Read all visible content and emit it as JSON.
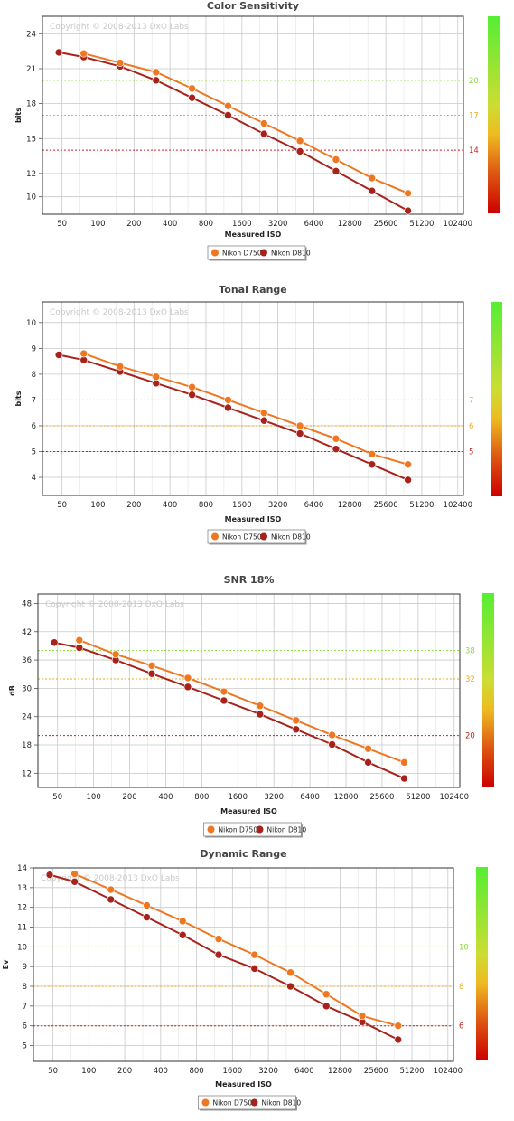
{
  "watermark": "Copyright © 2008-2013 DxO Labs",
  "colors": {
    "d750": "#ee7722",
    "d810": "#a8221c",
    "grid": "#c9c9c9",
    "ref_good": "#88dd33",
    "ref_mid": "#eeaa22",
    "ref_bad": "#cc2222"
  },
  "chart_data": [
    {
      "type": "line",
      "title": "Color Sensitivity",
      "xlabel": "Measured ISO",
      "ylabel": "bits",
      "x_ticks": [
        "50",
        "100",
        "200",
        "400",
        "800",
        "1600",
        "3200",
        "6400",
        "12800",
        "25600",
        "51200",
        "102400"
      ],
      "x_log2_min": 5.1,
      "x_log2_max": 16.8,
      "y_ticks": [
        10,
        12,
        15,
        18,
        21,
        24
      ],
      "ylim": [
        8.5,
        25.5
      ],
      "reference_lines": [
        {
          "value": 20,
          "label": "20",
          "level": "good"
        },
        {
          "value": 17,
          "label": "17",
          "level": "mid"
        },
        {
          "value": 14,
          "label": "14",
          "level": "bad"
        }
      ],
      "grid": true,
      "legend": "bottom-center",
      "series": [
        {
          "name": "Nikon D750",
          "color_key": "d750",
          "x": [
            76,
            153,
            306,
            612,
            1225,
            2450,
            4900,
            9800,
            19600,
            39200
          ],
          "values": [
            22.3,
            21.5,
            20.7,
            19.3,
            17.8,
            16.3,
            14.8,
            13.2,
            11.6,
            10.3
          ]
        },
        {
          "name": "Nikon D810",
          "color_key": "d810",
          "x": [
            47,
            76,
            153,
            306,
            612,
            1225,
            2450,
            4900,
            9800,
            19600,
            39200
          ],
          "values": [
            22.4,
            22.0,
            21.2,
            20.0,
            18.5,
            17.0,
            15.4,
            13.9,
            12.2,
            10.5,
            8.8
          ]
        }
      ]
    },
    {
      "type": "line",
      "title": "Tonal Range",
      "xlabel": "Measured ISO",
      "ylabel": "bits",
      "x_ticks": [
        "50",
        "100",
        "200",
        "400",
        "800",
        "1600",
        "3200",
        "6400",
        "12800",
        "25600",
        "51200",
        "102400"
      ],
      "x_log2_min": 5.1,
      "x_log2_max": 16.8,
      "y_ticks": [
        4,
        5,
        6,
        7,
        8,
        9,
        10
      ],
      "ylim": [
        3.3,
        10.8
      ],
      "reference_lines": [
        {
          "value": 7,
          "label": "7",
          "level": "good"
        },
        {
          "value": 6,
          "label": "6",
          "level": "mid"
        },
        {
          "value": 5,
          "label": "5",
          "level": "bad"
        }
      ],
      "grid": true,
      "legend": "bottom-center",
      "series": [
        {
          "name": "Nikon D750",
          "color_key": "d750",
          "x": [
            76,
            153,
            306,
            612,
            1225,
            2450,
            4900,
            9800,
            19600,
            39200
          ],
          "values": [
            8.8,
            8.3,
            7.9,
            7.5,
            7.0,
            6.5,
            6.0,
            5.5,
            4.9,
            4.5
          ]
        },
        {
          "name": "Nikon D810",
          "color_key": "d810",
          "x": [
            47,
            76,
            153,
            306,
            612,
            1225,
            2450,
            4900,
            9800,
            19600,
            39200
          ],
          "values": [
            8.75,
            8.55,
            8.1,
            7.65,
            7.2,
            6.7,
            6.2,
            5.7,
            5.1,
            4.5,
            3.9
          ]
        }
      ]
    },
    {
      "type": "line",
      "title": "SNR 18%",
      "xlabel": "Measured ISO",
      "ylabel": "dB",
      "x_ticks": [
        "50",
        "100",
        "200",
        "400",
        "800",
        "1600",
        "3200",
        "6400",
        "12800",
        "25600",
        "51200",
        "102400"
      ],
      "x_log2_min": 5.1,
      "x_log2_max": 16.8,
      "y_ticks": [
        12,
        18,
        24,
        30,
        36,
        42,
        48
      ],
      "ylim": [
        9,
        50
      ],
      "reference_lines": [
        {
          "value": 38,
          "label": "38",
          "level": "good"
        },
        {
          "value": 32,
          "label": "32",
          "level": "mid"
        },
        {
          "value": 20,
          "label": "20",
          "level": "bad"
        }
      ],
      "grid": true,
      "legend": "bottom-center",
      "series": [
        {
          "name": "Nikon D750",
          "color_key": "d750",
          "x": [
            76,
            153,
            306,
            612,
            1225,
            2450,
            4900,
            9800,
            19600,
            39200
          ],
          "values": [
            40.2,
            37.2,
            34.8,
            32.2,
            29.3,
            26.3,
            23.2,
            20.1,
            17.2,
            14.3
          ]
        },
        {
          "name": "Nikon D810",
          "color_key": "d810",
          "x": [
            47,
            76,
            153,
            306,
            612,
            1225,
            2450,
            4900,
            9800,
            19600,
            39200
          ],
          "values": [
            39.7,
            38.6,
            36.0,
            33.1,
            30.3,
            27.4,
            24.5,
            21.3,
            18.1,
            14.3,
            10.9
          ]
        }
      ]
    },
    {
      "type": "line",
      "title": "Dynamic Range",
      "xlabel": "Measured ISO",
      "ylabel": "Ev",
      "x_ticks": [
        "50",
        "100",
        "200",
        "400",
        "800",
        "1600",
        "3200",
        "6400",
        "12800",
        "25600",
        "51200",
        "102400"
      ],
      "x_log2_min": 5.1,
      "x_log2_max": 16.8,
      "y_ticks": [
        5,
        6,
        7,
        8,
        9,
        10,
        11,
        12,
        13,
        14
      ],
      "ylim": [
        4.2,
        14.0
      ],
      "reference_lines": [
        {
          "value": 10,
          "label": "10",
          "level": "good"
        },
        {
          "value": 8,
          "label": "8",
          "level": "mid"
        },
        {
          "value": 6,
          "label": "6",
          "level": "bad"
        }
      ],
      "grid": true,
      "legend": "bottom-center",
      "series": [
        {
          "name": "Nikon D750",
          "color_key": "d750",
          "x": [
            76,
            153,
            306,
            612,
            1225,
            2450,
            4900,
            9800,
            19600,
            39200
          ],
          "values": [
            13.7,
            12.9,
            12.1,
            11.3,
            10.4,
            9.6,
            8.7,
            7.6,
            6.5,
            6.0
          ]
        },
        {
          "name": "Nikon D810",
          "color_key": "d810",
          "x": [
            47,
            76,
            153,
            306,
            612,
            1225,
            2450,
            4900,
            9800,
            19600,
            39200
          ],
          "values": [
            13.65,
            13.3,
            12.4,
            11.5,
            10.6,
            9.6,
            8.9,
            8.0,
            7.0,
            6.2,
            5.3
          ]
        }
      ]
    }
  ]
}
